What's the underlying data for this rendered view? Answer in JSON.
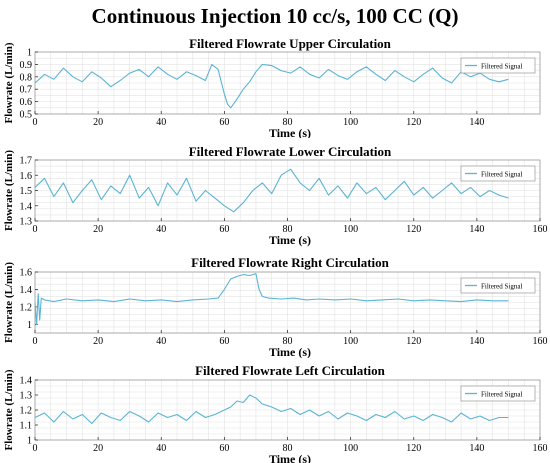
{
  "figure": {
    "title": "Continuous Injection 10 cc/s, 100 CC (Q)"
  },
  "colors": {
    "signal": "#5ab4d4",
    "grid": "#e3e3e3",
    "axis": "#333333"
  },
  "chart_data": [
    {
      "type": "line",
      "title": "Filtered Flowrate Upper Circulation",
      "xlabel": "Time (s)",
      "ylabel": "Flowrate (L/min)",
      "xlim": [
        0,
        160
      ],
      "ylim": [
        0.5,
        1.0
      ],
      "xticks": [
        0,
        20,
        40,
        60,
        80,
        100,
        120,
        140
      ],
      "yticks": [
        0.5,
        0.6,
        0.7,
        0.8,
        0.9,
        1
      ],
      "grid": true,
      "legend": "top-right",
      "series": [
        {
          "name": "Filtered Signal",
          "x": [
            0,
            3,
            6,
            9,
            12,
            15,
            18,
            21,
            24,
            27,
            30,
            33,
            36,
            39,
            42,
            45,
            48,
            51,
            54,
            56,
            58,
            60,
            61,
            62,
            64,
            66,
            68,
            70,
            72,
            75,
            78,
            81,
            84,
            87,
            90,
            93,
            96,
            99,
            102,
            105,
            108,
            111,
            114,
            117,
            120,
            123,
            126,
            129,
            132,
            135,
            138,
            141,
            144,
            147,
            150
          ],
          "y": [
            0.75,
            0.82,
            0.78,
            0.87,
            0.8,
            0.76,
            0.84,
            0.79,
            0.72,
            0.77,
            0.83,
            0.86,
            0.8,
            0.88,
            0.82,
            0.78,
            0.84,
            0.81,
            0.77,
            0.9,
            0.86,
            0.66,
            0.58,
            0.55,
            0.62,
            0.7,
            0.76,
            0.84,
            0.9,
            0.89,
            0.85,
            0.83,
            0.88,
            0.82,
            0.79,
            0.86,
            0.81,
            0.78,
            0.84,
            0.88,
            0.82,
            0.77,
            0.85,
            0.8,
            0.76,
            0.82,
            0.87,
            0.79,
            0.75,
            0.84,
            0.8,
            0.83,
            0.78,
            0.76,
            0.78
          ]
        }
      ]
    },
    {
      "type": "line",
      "title": "Filtered Flowrate Lower Circulation",
      "xlabel": "Time (s)",
      "ylabel": "Flowrate (L/min)",
      "xlim": [
        0,
        160
      ],
      "ylim": [
        1.3,
        1.7
      ],
      "xticks": [
        0,
        20,
        40,
        60,
        80,
        100,
        120,
        140,
        160
      ],
      "yticks": [
        1.3,
        1.4,
        1.5,
        1.6,
        1.7
      ],
      "grid": true,
      "legend": "top-right",
      "series": [
        {
          "name": "Filtered Signal",
          "x": [
            0,
            3,
            6,
            9,
            12,
            15,
            18,
            21,
            24,
            27,
            30,
            33,
            36,
            39,
            42,
            45,
            48,
            51,
            54,
            57,
            60,
            63,
            66,
            69,
            72,
            75,
            78,
            81,
            84,
            87,
            90,
            93,
            96,
            99,
            102,
            105,
            108,
            111,
            114,
            117,
            120,
            123,
            126,
            129,
            132,
            135,
            138,
            141,
            144,
            147,
            150
          ],
          "y": [
            1.52,
            1.58,
            1.46,
            1.55,
            1.42,
            1.5,
            1.57,
            1.44,
            1.53,
            1.48,
            1.6,
            1.45,
            1.52,
            1.4,
            1.55,
            1.47,
            1.58,
            1.43,
            1.5,
            1.45,
            1.4,
            1.36,
            1.42,
            1.5,
            1.55,
            1.48,
            1.6,
            1.64,
            1.55,
            1.5,
            1.58,
            1.47,
            1.53,
            1.45,
            1.55,
            1.48,
            1.52,
            1.44,
            1.5,
            1.56,
            1.47,
            1.52,
            1.45,
            1.5,
            1.55,
            1.48,
            1.52,
            1.46,
            1.5,
            1.47,
            1.45
          ]
        }
      ]
    },
    {
      "type": "line",
      "title": "Filtered Flowrate Right Circulation",
      "xlabel": "Time (s)",
      "ylabel": "Flowrate (L/min)",
      "xlim": [
        0,
        160
      ],
      "ylim": [
        0.9,
        1.6
      ],
      "xticks": [
        0,
        20,
        40,
        60,
        80,
        100,
        120,
        140,
        160
      ],
      "yticks": [
        1,
        1.2,
        1.4,
        1.6
      ],
      "grid": true,
      "legend": "top-right",
      "series": [
        {
          "name": "Filtered Signal",
          "x": [
            0,
            0.5,
            1,
            1.5,
            2,
            3,
            6,
            10,
            15,
            20,
            25,
            30,
            35,
            40,
            45,
            50,
            55,
            58,
            60,
            62,
            64,
            66,
            68,
            70,
            71,
            72,
            74,
            78,
            82,
            86,
            90,
            95,
            100,
            105,
            110,
            115,
            120,
            125,
            130,
            135,
            140,
            145,
            150
          ],
          "y": [
            1.25,
            1.0,
            1.35,
            1.05,
            1.3,
            1.28,
            1.26,
            1.29,
            1.27,
            1.28,
            1.26,
            1.29,
            1.27,
            1.28,
            1.26,
            1.28,
            1.29,
            1.3,
            1.4,
            1.52,
            1.55,
            1.57,
            1.56,
            1.58,
            1.4,
            1.32,
            1.3,
            1.29,
            1.3,
            1.28,
            1.29,
            1.28,
            1.29,
            1.27,
            1.28,
            1.29,
            1.27,
            1.28,
            1.27,
            1.26,
            1.28,
            1.27,
            1.27
          ]
        }
      ]
    },
    {
      "type": "line",
      "title": "Filtered Flowrate Left Circulation",
      "xlabel": "Time (s)",
      "ylabel": "Flowrate (L/min)",
      "xlim": [
        0,
        160
      ],
      "ylim": [
        1.0,
        1.4
      ],
      "xticks": [
        0,
        20,
        40,
        60,
        80,
        100,
        120,
        140,
        160
      ],
      "yticks": [
        1,
        1.1,
        1.2,
        1.3,
        1.4
      ],
      "grid": true,
      "legend": "top-right",
      "series": [
        {
          "name": "Filtered Signal",
          "x": [
            0,
            3,
            6,
            9,
            12,
            15,
            18,
            21,
            24,
            27,
            30,
            33,
            36,
            39,
            42,
            45,
            48,
            51,
            54,
            57,
            60,
            62,
            64,
            66,
            68,
            70,
            72,
            75,
            78,
            81,
            84,
            87,
            90,
            93,
            96,
            99,
            102,
            105,
            108,
            111,
            114,
            117,
            120,
            123,
            126,
            129,
            132,
            135,
            138,
            141,
            144,
            147,
            150
          ],
          "y": [
            1.15,
            1.18,
            1.12,
            1.19,
            1.14,
            1.17,
            1.11,
            1.18,
            1.15,
            1.13,
            1.19,
            1.16,
            1.12,
            1.18,
            1.15,
            1.17,
            1.13,
            1.19,
            1.15,
            1.17,
            1.2,
            1.22,
            1.26,
            1.25,
            1.3,
            1.28,
            1.24,
            1.22,
            1.19,
            1.21,
            1.17,
            1.2,
            1.16,
            1.19,
            1.14,
            1.18,
            1.16,
            1.13,
            1.17,
            1.15,
            1.19,
            1.14,
            1.16,
            1.13,
            1.17,
            1.15,
            1.12,
            1.18,
            1.14,
            1.16,
            1.13,
            1.15,
            1.15
          ]
        }
      ]
    }
  ]
}
